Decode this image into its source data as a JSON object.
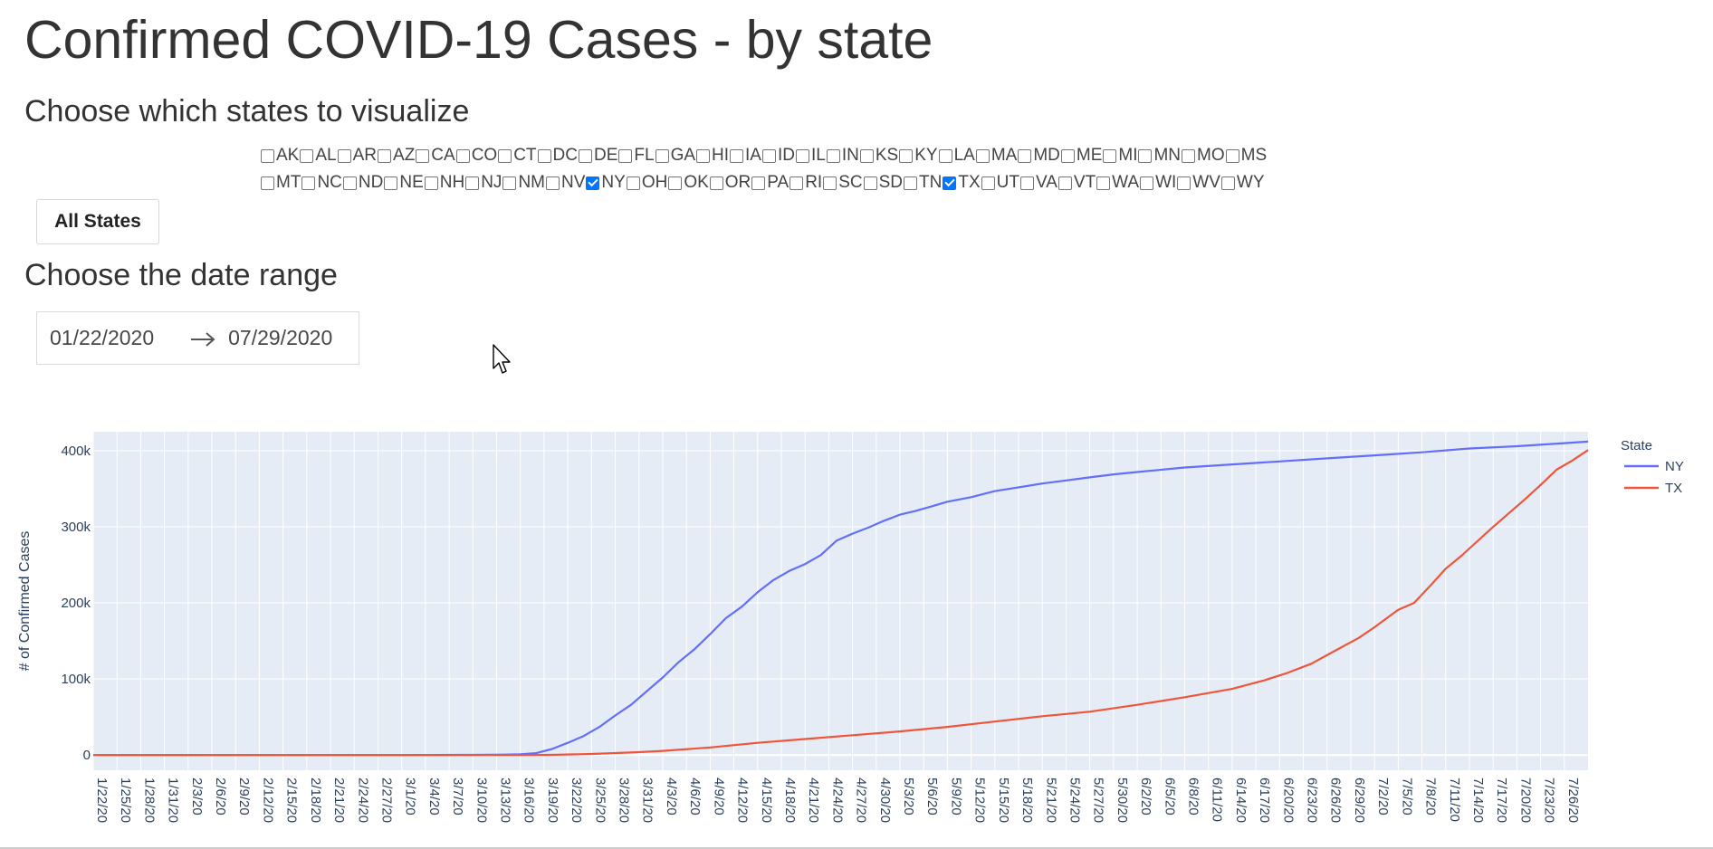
{
  "page": {
    "title": "Confirmed COVID-19 Cases - by state",
    "states_heading": "Choose which states to visualize",
    "date_heading": "Choose the date range",
    "all_states_button": "All States"
  },
  "states": {
    "row1": [
      {
        "label": "AK",
        "checked": false
      },
      {
        "label": "AL",
        "checked": false
      },
      {
        "label": "AR",
        "checked": false
      },
      {
        "label": "AZ",
        "checked": false
      },
      {
        "label": "CA",
        "checked": false
      },
      {
        "label": "CO",
        "checked": false
      },
      {
        "label": "CT",
        "checked": false
      },
      {
        "label": "DC",
        "checked": false
      },
      {
        "label": "DE",
        "checked": false
      },
      {
        "label": "FL",
        "checked": false
      },
      {
        "label": "GA",
        "checked": false
      },
      {
        "label": "HI",
        "checked": false
      },
      {
        "label": "IA",
        "checked": false
      },
      {
        "label": "ID",
        "checked": false
      },
      {
        "label": "IL",
        "checked": false
      },
      {
        "label": "IN",
        "checked": false
      },
      {
        "label": "KS",
        "checked": false
      },
      {
        "label": "KY",
        "checked": false
      },
      {
        "label": "LA",
        "checked": false
      },
      {
        "label": "MA",
        "checked": false
      },
      {
        "label": "MD",
        "checked": false
      },
      {
        "label": "ME",
        "checked": false
      },
      {
        "label": "MI",
        "checked": false
      },
      {
        "label": "MN",
        "checked": false
      },
      {
        "label": "MO",
        "checked": false
      },
      {
        "label": "MS",
        "checked": false
      }
    ],
    "row2": [
      {
        "label": "MT",
        "checked": false
      },
      {
        "label": "NC",
        "checked": false
      },
      {
        "label": "ND",
        "checked": false
      },
      {
        "label": "NE",
        "checked": false
      },
      {
        "label": "NH",
        "checked": false
      },
      {
        "label": "NJ",
        "checked": false
      },
      {
        "label": "NM",
        "checked": false
      },
      {
        "label": "NV",
        "checked": false
      },
      {
        "label": "NY",
        "checked": true
      },
      {
        "label": "OH",
        "checked": false
      },
      {
        "label": "OK",
        "checked": false
      },
      {
        "label": "OR",
        "checked": false
      },
      {
        "label": "PA",
        "checked": false
      },
      {
        "label": "RI",
        "checked": false
      },
      {
        "label": "SC",
        "checked": false
      },
      {
        "label": "SD",
        "checked": false
      },
      {
        "label": "TN",
        "checked": false
      },
      {
        "label": "TX",
        "checked": true
      },
      {
        "label": "UT",
        "checked": false
      },
      {
        "label": "VA",
        "checked": false
      },
      {
        "label": "VT",
        "checked": false
      },
      {
        "label": "WA",
        "checked": false
      },
      {
        "label": "WI",
        "checked": false
      },
      {
        "label": "WV",
        "checked": false
      },
      {
        "label": "WY",
        "checked": false
      }
    ]
  },
  "date_range": {
    "start": "01/22/2020",
    "end": "07/29/2020"
  },
  "icons": {
    "arrow": "arrow-right-icon",
    "cursor": "mouse-pointer-icon"
  },
  "chart_data": {
    "type": "line",
    "title": "",
    "xlabel": "",
    "ylabel": "# of Confirmed Cases",
    "ylim": [
      -20000,
      425000
    ],
    "xlim": [
      "2020-01-22",
      "2020-07-29"
    ],
    "yticks": [
      0,
      100000,
      200000,
      300000,
      400000
    ],
    "ytick_labels": [
      "0",
      "100k",
      "200k",
      "300k",
      "400k"
    ],
    "xtick_labels": [
      "1/22/20",
      "1/25/20",
      "1/28/20",
      "1/31/20",
      "2/3/20",
      "2/6/20",
      "2/9/20",
      "2/12/20",
      "2/15/20",
      "2/18/20",
      "2/21/20",
      "2/24/20",
      "2/27/20",
      "3/1/20",
      "3/4/20",
      "3/7/20",
      "3/10/20",
      "3/13/20",
      "3/16/20",
      "3/19/20",
      "3/22/20",
      "3/25/20",
      "3/28/20",
      "3/31/20",
      "4/3/20",
      "4/6/20",
      "4/9/20",
      "4/12/20",
      "4/15/20",
      "4/18/20",
      "4/21/20",
      "4/24/20",
      "4/27/20",
      "4/30/20",
      "5/3/20",
      "5/6/20",
      "5/9/20",
      "5/12/20",
      "5/15/20",
      "5/18/20",
      "5/21/20",
      "5/24/20",
      "5/27/20",
      "5/30/20",
      "6/2/20",
      "6/5/20",
      "6/8/20",
      "6/11/20",
      "6/14/20",
      "6/17/20",
      "6/20/20",
      "6/23/20",
      "6/26/20",
      "6/29/20",
      "7/2/20",
      "7/5/20",
      "7/8/20",
      "7/11/20",
      "7/14/20",
      "7/17/20",
      "7/20/20",
      "7/23/20",
      "7/26/20"
    ],
    "legend": {
      "title": "State",
      "position": "right"
    },
    "grid": true,
    "plot_bg": "#e5ecf6",
    "series": [
      {
        "name": "NY",
        "color": "#636efa",
        "points": [
          [
            "1/22/20",
            0
          ],
          [
            "3/1/20",
            1
          ],
          [
            "3/10/20",
            170
          ],
          [
            "3/14/20",
            610
          ],
          [
            "3/16/20",
            950
          ],
          [
            "3/18/20",
            2500
          ],
          [
            "3/20/20",
            8000
          ],
          [
            "3/22/20",
            16000
          ],
          [
            "3/24/20",
            25000
          ],
          [
            "3/26/20",
            37000
          ],
          [
            "3/28/20",
            52000
          ],
          [
            "3/30/20",
            66000
          ],
          [
            "4/1/20",
            84000
          ],
          [
            "4/3/20",
            102000
          ],
          [
            "4/5/20",
            122000
          ],
          [
            "4/7/20",
            139000
          ],
          [
            "4/9/20",
            159000
          ],
          [
            "4/11/20",
            180000
          ],
          [
            "4/13/20",
            195000
          ],
          [
            "4/15/20",
            214000
          ],
          [
            "4/17/20",
            230000
          ],
          [
            "4/19/20",
            242000
          ],
          [
            "4/21/20",
            251000
          ],
          [
            "4/23/20",
            263000
          ],
          [
            "4/25/20",
            282000
          ],
          [
            "4/27/20",
            291000
          ],
          [
            "4/29/20",
            299000
          ],
          [
            "5/1/20",
            308000
          ],
          [
            "5/3/20",
            316000
          ],
          [
            "5/5/20",
            321000
          ],
          [
            "5/7/20",
            327000
          ],
          [
            "5/9/20",
            333000
          ],
          [
            "5/12/20",
            339000
          ],
          [
            "5/15/20",
            347000
          ],
          [
            "5/18/20",
            352000
          ],
          [
            "5/21/20",
            357000
          ],
          [
            "5/24/20",
            361000
          ],
          [
            "5/27/20",
            365000
          ],
          [
            "5/30/20",
            369000
          ],
          [
            "6/2/20",
            372000
          ],
          [
            "6/8/20",
            378000
          ],
          [
            "6/14/20",
            382000
          ],
          [
            "6/20/20",
            386000
          ],
          [
            "6/26/20",
            390000
          ],
          [
            "7/2/20",
            394000
          ],
          [
            "7/8/20",
            398000
          ],
          [
            "7/14/20",
            403000
          ],
          [
            "7/20/20",
            406000
          ],
          [
            "7/26/20",
            410000
          ],
          [
            "7/29/20",
            412000
          ]
        ]
      },
      {
        "name": "TX",
        "color": "#ef553b",
        "points": [
          [
            "1/22/20",
            0
          ],
          [
            "3/4/20",
            0
          ],
          [
            "3/16/20",
            60
          ],
          [
            "3/20/20",
            200
          ],
          [
            "3/25/20",
            1400
          ],
          [
            "3/31/20",
            3800
          ],
          [
            "4/3/20",
            5500
          ],
          [
            "4/9/20",
            10000
          ],
          [
            "4/15/20",
            16000
          ],
          [
            "4/21/20",
            21000
          ],
          [
            "4/27/20",
            26000
          ],
          [
            "5/3/20",
            31000
          ],
          [
            "5/9/20",
            37000
          ],
          [
            "5/15/20",
            44000
          ],
          [
            "5/21/20",
            51000
          ],
          [
            "5/27/20",
            57000
          ],
          [
            "6/2/20",
            66000
          ],
          [
            "6/8/20",
            76000
          ],
          [
            "6/14/20",
            87000
          ],
          [
            "6/18/20",
            98000
          ],
          [
            "6/21/20",
            108000
          ],
          [
            "6/24/20",
            120000
          ],
          [
            "6/27/20",
            137000
          ],
          [
            "6/30/20",
            154000
          ],
          [
            "7/2/20",
            168000
          ],
          [
            "7/5/20",
            191000
          ],
          [
            "7/7/20",
            200000
          ],
          [
            "7/9/20",
            222000
          ],
          [
            "7/11/20",
            245000
          ],
          [
            "7/13/20",
            262000
          ],
          [
            "7/15/20",
            281000
          ],
          [
            "7/17/20",
            300000
          ],
          [
            "7/19/20",
            318000
          ],
          [
            "7/21/20",
            336000
          ],
          [
            "7/23/20",
            355000
          ],
          [
            "7/25/20",
            375000
          ],
          [
            "7/27/20",
            387000
          ],
          [
            "7/29/20",
            401000
          ]
        ]
      }
    ]
  }
}
